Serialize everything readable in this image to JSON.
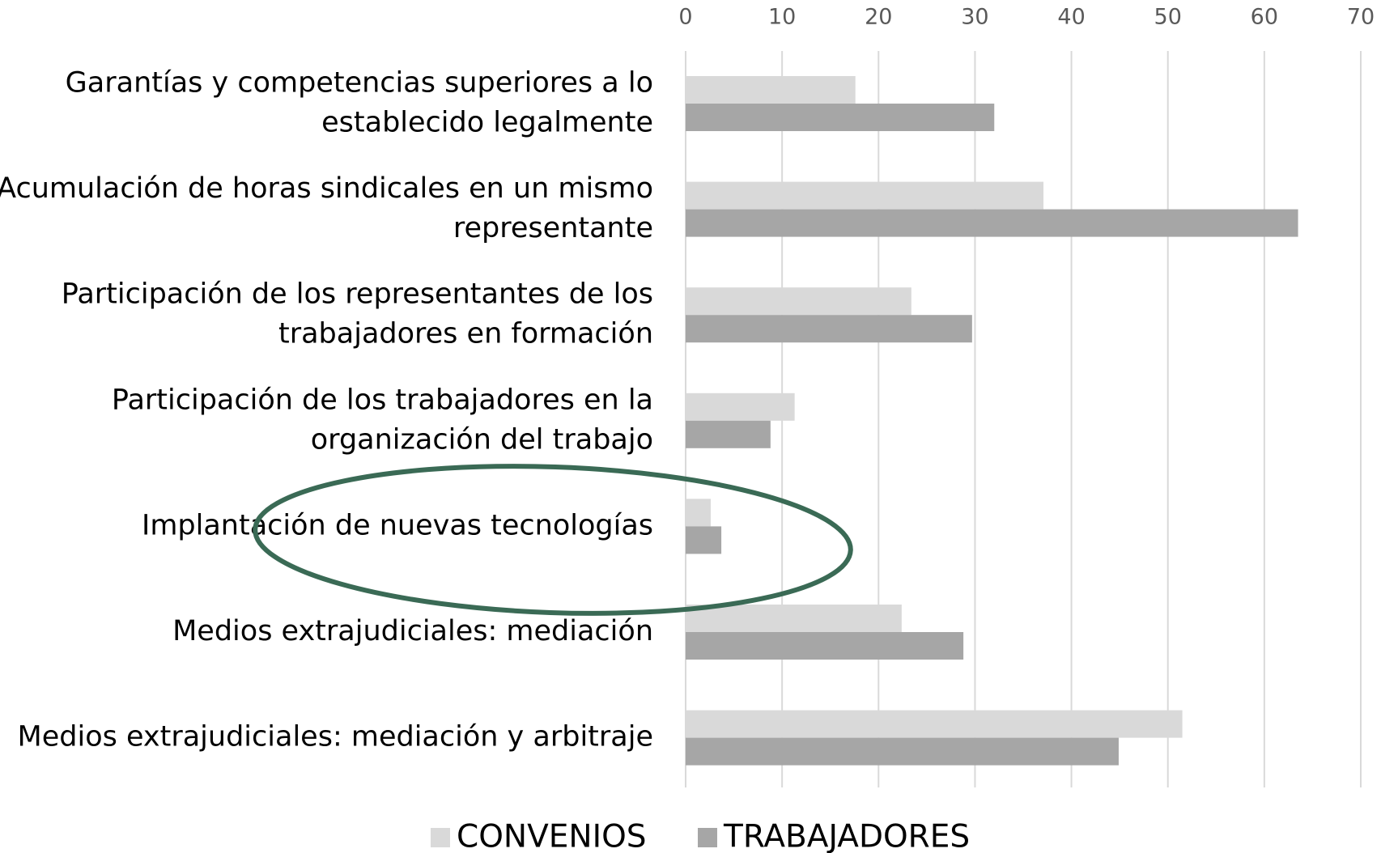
{
  "chart_data": {
    "type": "bar",
    "orientation": "horizontal",
    "categories": [
      [
        "Garantías y competencias superiores a lo",
        "establecido legalmente"
      ],
      [
        "Acumulación de horas sindicales en un mismo",
        "representante"
      ],
      [
        "Participación de los representantes de los",
        "trabajadores en formación"
      ],
      [
        "Participación de los trabajadores en la",
        "organización del trabajo"
      ],
      [
        "Implantación de nuevas tecnologías"
      ],
      [
        "Medios extrajudiciales: mediación"
      ],
      [
        "Medios extrajudiciales: mediación y arbitraje"
      ]
    ],
    "series": [
      {
        "name": "CONVENIOS",
        "color": "#d9d9d9",
        "values": [
          17.6,
          37.1,
          23.4,
          11.3,
          2.6,
          22.4,
          51.5
        ]
      },
      {
        "name": "TRABAJADORES",
        "color": "#a6a6a6",
        "values": [
          32.0,
          63.5,
          29.7,
          8.8,
          3.7,
          28.8,
          44.9
        ]
      }
    ],
    "xlim": [
      0,
      70
    ],
    "xticks": [
      0,
      10,
      20,
      30,
      40,
      50,
      60,
      70
    ],
    "grid": true,
    "legend": "bottom"
  }
}
